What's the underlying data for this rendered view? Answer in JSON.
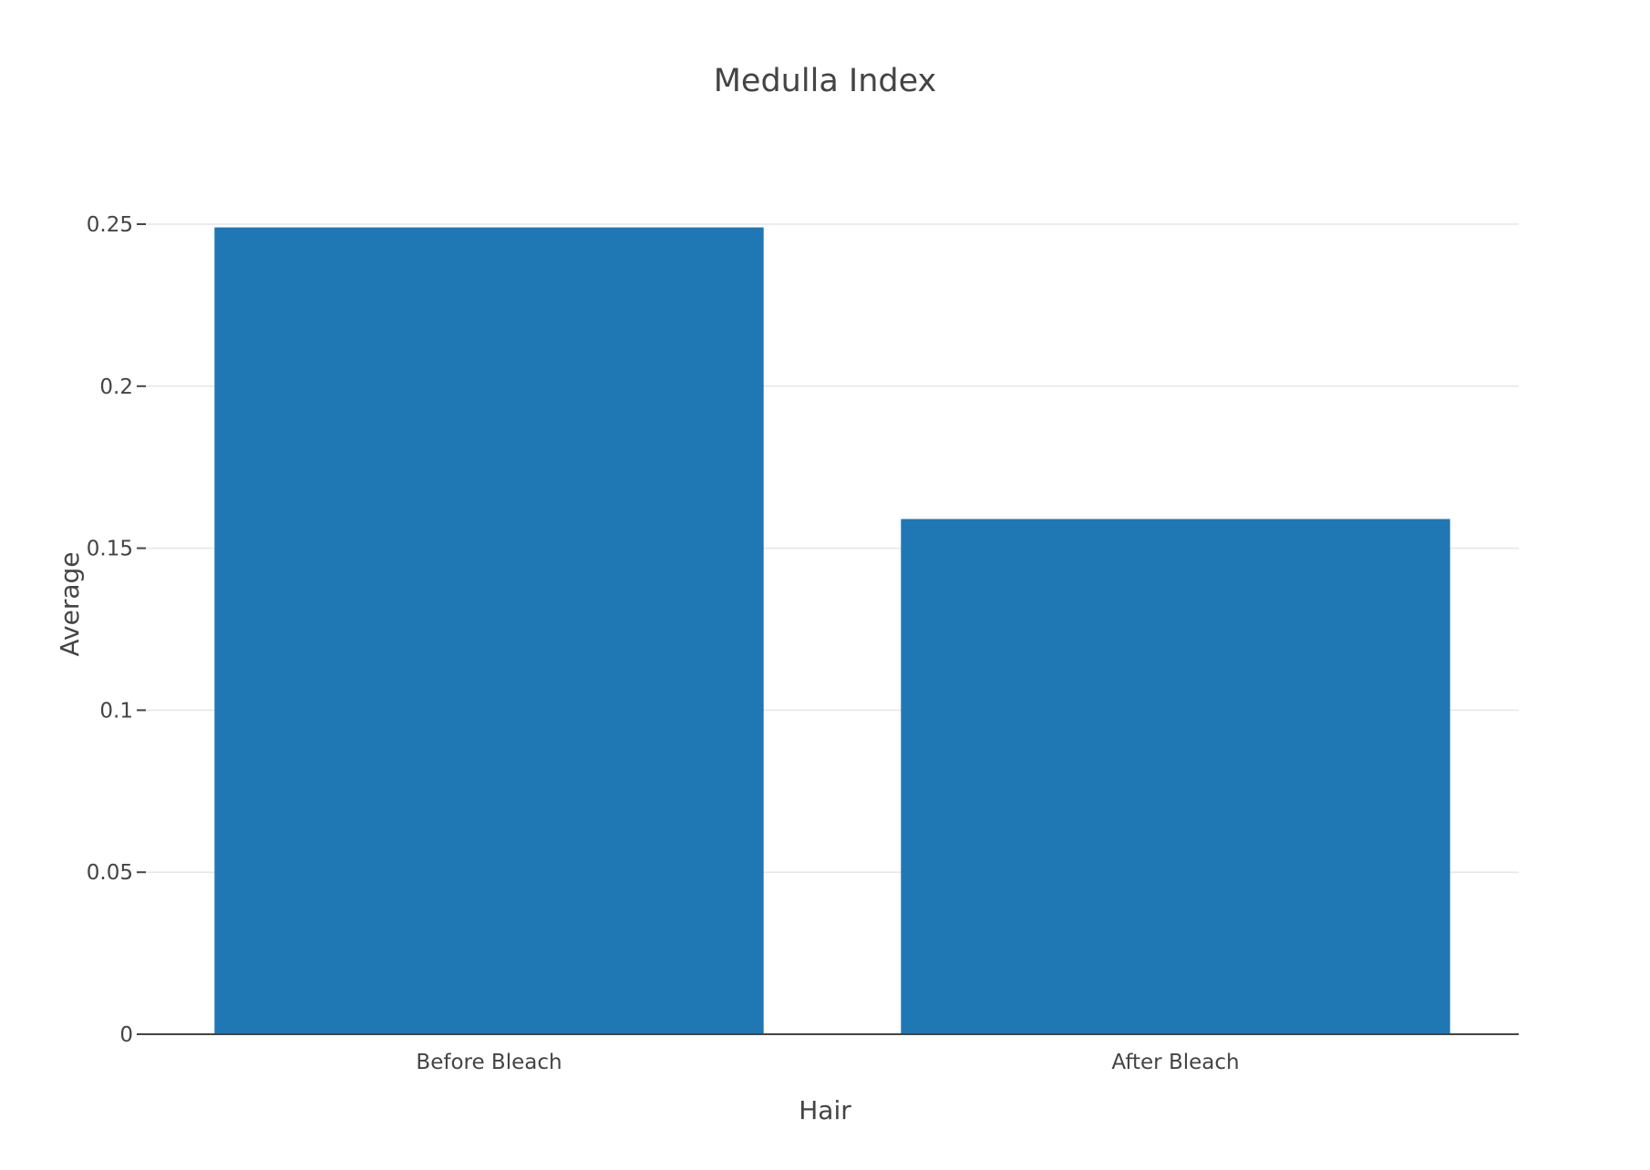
{
  "chart_data": {
    "type": "bar",
    "title": "Medulla Index",
    "xlabel": "Hair",
    "ylabel": "Average",
    "categories": [
      "Before Bleach",
      "After Bleach"
    ],
    "values": [
      0.249,
      0.159
    ],
    "ylim": [
      0,
      0.25
    ],
    "yticks": [
      0,
      0.05,
      0.1,
      0.15,
      0.2,
      0.25
    ],
    "ytick_labels": [
      "0",
      "0.05",
      "0.1",
      "0.15",
      "0.2",
      "0.25"
    ],
    "grid": true,
    "legend": "none",
    "bar_color": "#1f77b4"
  }
}
